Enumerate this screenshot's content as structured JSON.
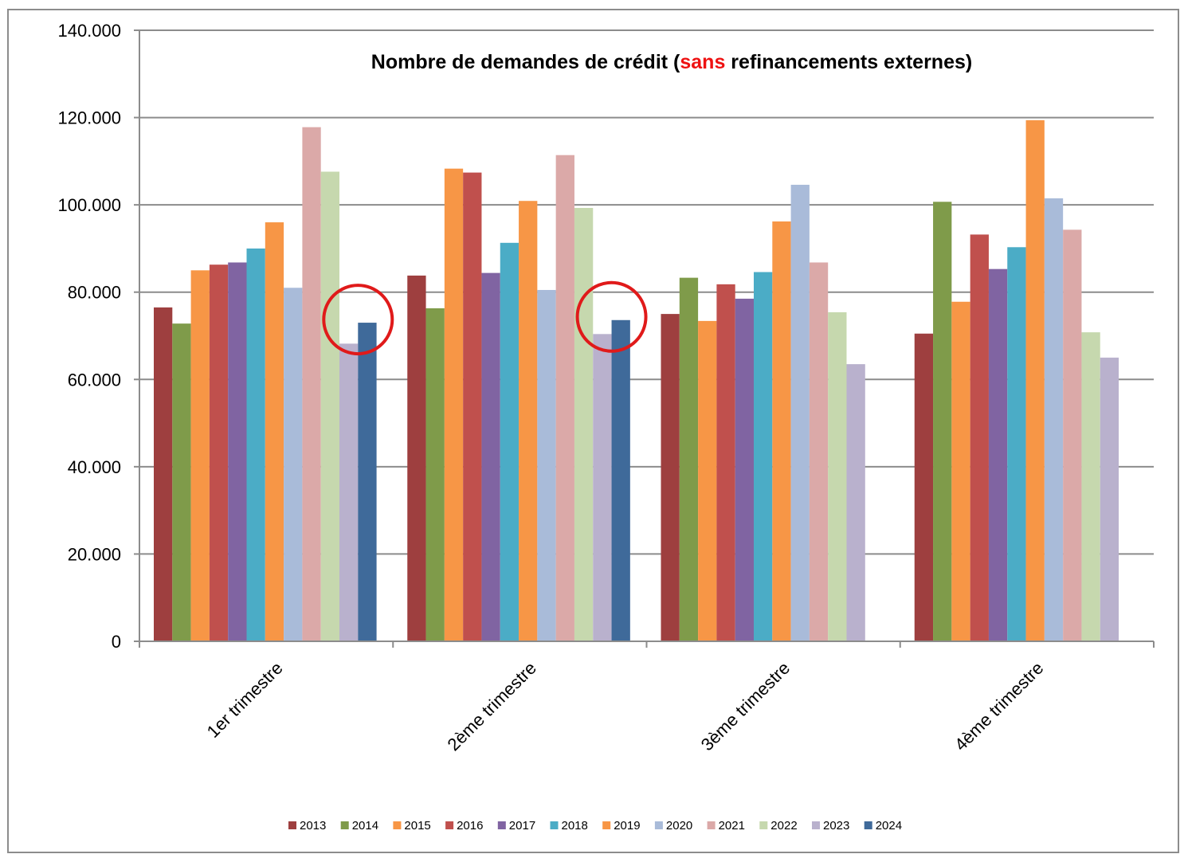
{
  "chart_data": {
    "type": "bar",
    "title": {
      "before": "Nombre de demandes de crédit (",
      "highlight": "sans",
      "after": " refinancements externes)",
      "highlight_color": "#ee1111"
    },
    "categories": [
      "1er trimestre",
      "2ème trimestre",
      "3ème trimestre",
      "4ème trimestre"
    ],
    "ylim": [
      0,
      140000
    ],
    "yticks": [
      0,
      20000,
      40000,
      60000,
      80000,
      100000,
      120000,
      140000
    ],
    "ytick_labels": [
      "0",
      "20.000",
      "40.000",
      "60.000",
      "80.000",
      "100.000",
      "120.000",
      "140.000"
    ],
    "grid": true,
    "legend_position": "bottom",
    "series": [
      {
        "name": "2013",
        "color": "#9e3f3f",
        "values": [
          76500,
          83800,
          75000,
          70500
        ]
      },
      {
        "name": "2014",
        "color": "#7f9b4a",
        "values": [
          72800,
          76300,
          83300,
          100700
        ]
      },
      {
        "name": "2015",
        "color": "#f79646",
        "values": [
          85000,
          108300,
          73400,
          77800
        ]
      },
      {
        "name": "2016",
        "color": "#c0504d",
        "values": [
          86300,
          107400,
          81800,
          93200
        ]
      },
      {
        "name": "2017",
        "color": "#8064a2",
        "values": [
          86800,
          84400,
          78500,
          85300
        ]
      },
      {
        "name": "2018",
        "color": "#4bacc6",
        "values": [
          90000,
          91300,
          84600,
          90300
        ]
      },
      {
        "name": "2019",
        "color": "#f79646",
        "values": [
          96000,
          100900,
          96200,
          119400
        ]
      },
      {
        "name": "2020",
        "color": "#a9bbd9",
        "values": [
          81000,
          80500,
          104600,
          101500
        ]
      },
      {
        "name": "2021",
        "color": "#dba9a8",
        "values": [
          117800,
          111400,
          86800,
          94300
        ]
      },
      {
        "name": "2022",
        "color": "#c6d8ae",
        "values": [
          107600,
          99300,
          75400,
          70800
        ]
      },
      {
        "name": "2023",
        "color": "#b9b1cd",
        "values": [
          68200,
          70400,
          63500,
          65000
        ]
      },
      {
        "name": "2024",
        "color": "#3f6a9a",
        "values": [
          73000,
          73600,
          null,
          null
        ]
      }
    ],
    "highlighted_bars": [
      {
        "category": "1er trimestre",
        "series": [
          "2023",
          "2024"
        ],
        "color": "#e01a1a"
      },
      {
        "category": "2ème trimestre",
        "series": [
          "2023",
          "2024"
        ],
        "color": "#e01a1a"
      }
    ]
  }
}
